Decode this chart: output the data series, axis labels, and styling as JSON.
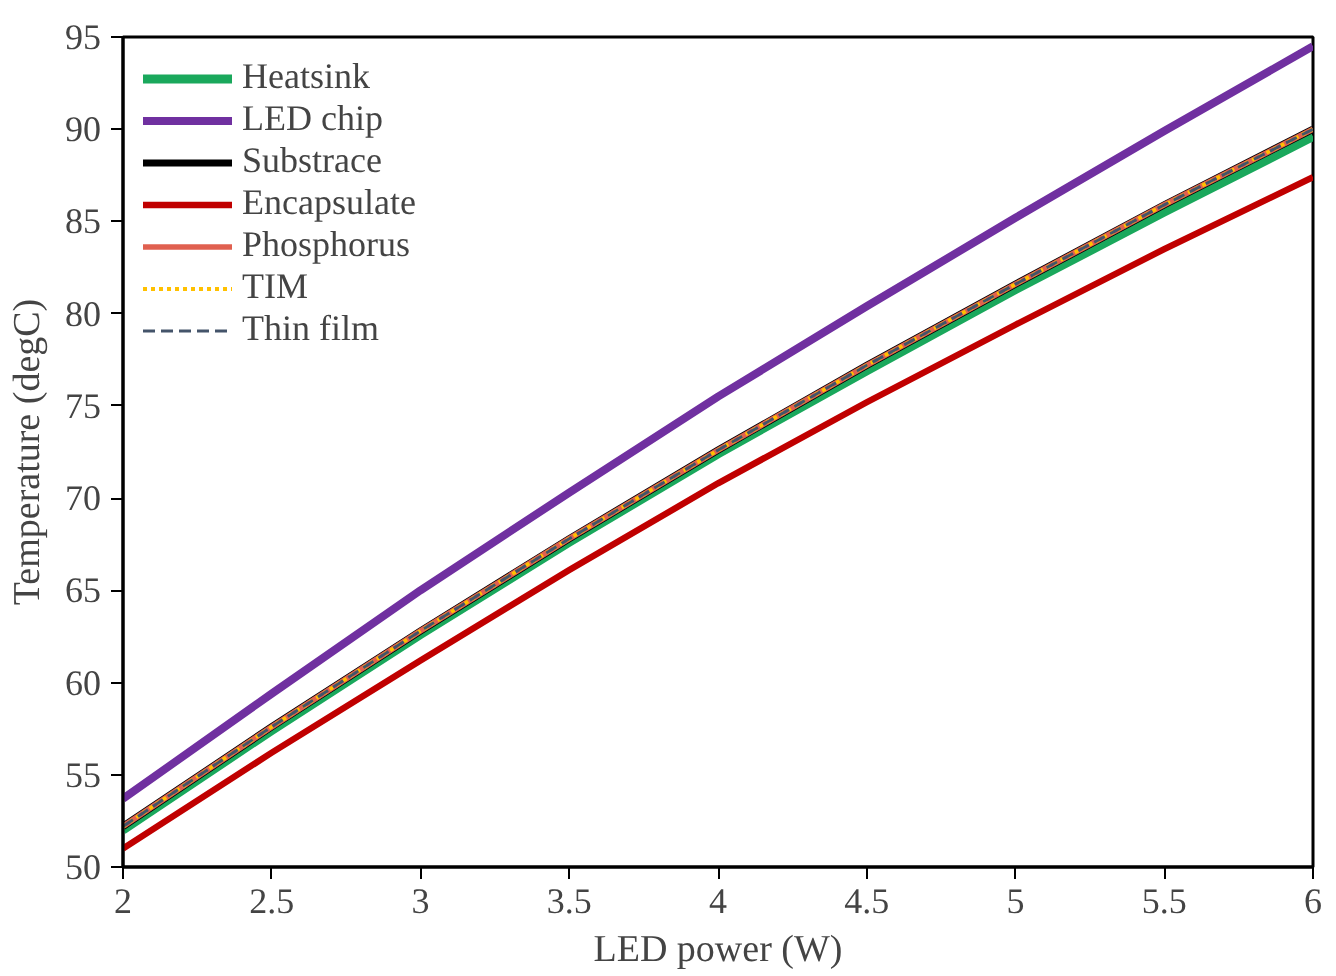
{
  "chart_data": {
    "type": "line",
    "xlabel": "LED power (W)",
    "ylabel": "Temperature (degC)",
    "x": [
      2,
      2.5,
      3,
      3.5,
      4,
      4.5,
      5,
      5.5,
      6
    ],
    "xlim": [
      2,
      6
    ],
    "xticks": [
      2,
      2.5,
      3,
      3.5,
      4,
      4.5,
      5,
      5.5,
      6
    ],
    "ylim": [
      50,
      95
    ],
    "yticks": [
      50,
      55,
      60,
      65,
      70,
      75,
      80,
      85,
      90,
      95
    ],
    "grid": false,
    "legend": "top left",
    "marker": "none",
    "series": [
      {
        "name": "Heatsink",
        "color": "#1aa85c",
        "line_style": "solid",
        "values": [
          52.0,
          57.4,
          62.6,
          67.6,
          72.4,
          76.9,
          81.3,
          85.5,
          89.6
        ]
      },
      {
        "name": "LED chip",
        "color": "#7030a0",
        "line_style": "solid",
        "values": [
          53.7,
          59.4,
          65.0,
          70.3,
          75.5,
          80.4,
          85.2,
          89.9,
          94.5
        ]
      },
      {
        "name": "Substrace",
        "color": "#000000",
        "line_style": "solid",
        "values": [
          52.2,
          57.6,
          62.8,
          67.8,
          72.6,
          77.2,
          81.6,
          85.9,
          90.0
        ]
      },
      {
        "name": "Encapsulate",
        "color": "#c00000",
        "line_style": "solid",
        "values": [
          51.0,
          56.2,
          61.2,
          66.1,
          70.8,
          75.2,
          79.4,
          83.5,
          87.4
        ]
      },
      {
        "name": "Phosphorus",
        "color": "#e06050",
        "line_style": "solid",
        "values": [
          52.2,
          57.6,
          62.8,
          67.8,
          72.6,
          77.2,
          81.6,
          85.9,
          90.0
        ]
      },
      {
        "name": "TIM",
        "color": "#ffc000",
        "line_style": "dotted",
        "values": [
          52.2,
          57.6,
          62.8,
          67.8,
          72.6,
          77.2,
          81.6,
          85.9,
          90.0
        ]
      },
      {
        "name": "Thin film",
        "color": "#44546a",
        "line_style": "dashed",
        "values": [
          52.2,
          57.6,
          62.8,
          67.8,
          72.6,
          77.2,
          81.6,
          85.9,
          90.0
        ]
      }
    ]
  }
}
